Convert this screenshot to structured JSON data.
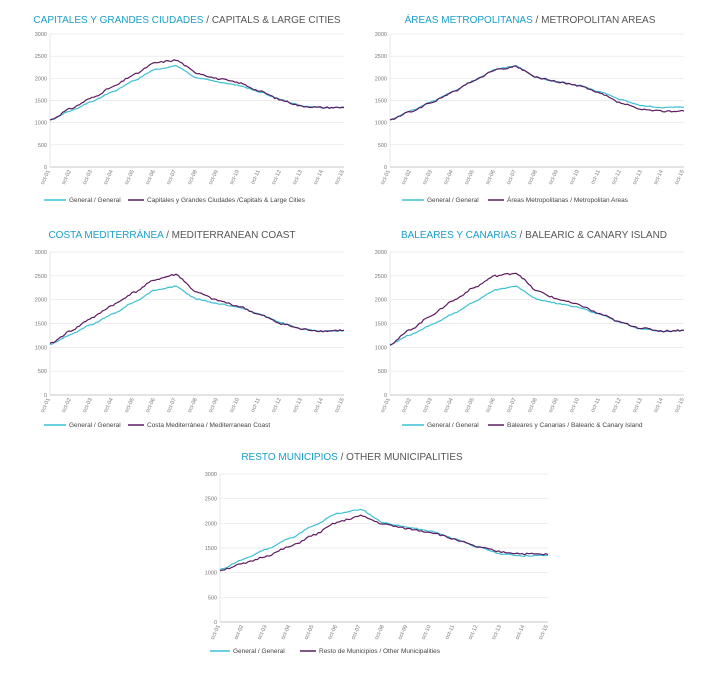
{
  "colors": {
    "general": "#3cc0d6",
    "region": "#5c1a60",
    "title_accent": "#1a9ec9",
    "axis": "#cccccc"
  },
  "x_categories": [
    "oct-01",
    "oct-02",
    "oct-03",
    "oct-04",
    "oct-05",
    "oct-06",
    "oct-07",
    "oct-08",
    "oct-09",
    "oct-10",
    "oct-11",
    "oct-12",
    "oct-13",
    "oct-14",
    "oct-15"
  ],
  "general_series": {
    "name_es": "General",
    "name_en": "General",
    "values": [
      1060,
      1270,
      1480,
      1700,
      1950,
      2200,
      2280,
      2010,
      1920,
      1840,
      1690,
      1520,
      1380,
      1340,
      1350
    ]
  },
  "chart_data": [
    {
      "type": "line",
      "title_es": "CAPITALES Y GRANDES CIUDADES",
      "title_en": "CAPITALS & LARGE CITIES",
      "ylim": [
        0,
        3000
      ],
      "yticks": [
        0,
        500,
        1000,
        1500,
        2000,
        2500,
        3000
      ],
      "legend_general": "General / General",
      "legend_region": "Capitales y Grandes Ciudades /Capitals & Large Cities",
      "region_values": [
        1060,
        1320,
        1560,
        1810,
        2080,
        2350,
        2410,
        2120,
        1990,
        1900,
        1710,
        1510,
        1370,
        1340,
        1340
      ]
    },
    {
      "type": "line",
      "title_es": "ÁREAS METROPOLITANAS",
      "title_en": "METROPOLITAN AREAS",
      "ylim": [
        0,
        3000
      ],
      "yticks": [
        0,
        500,
        1000,
        1500,
        2000,
        2500,
        3000
      ],
      "legend_general": "General / General",
      "legend_region": "Áreas Metropolitanas / Metropolitan Areas",
      "region_values": [
        1060,
        1250,
        1460,
        1690,
        1950,
        2190,
        2260,
        2020,
        1920,
        1830,
        1660,
        1440,
        1290,
        1260,
        1260
      ]
    },
    {
      "type": "line",
      "title_es": "COSTA MEDITERRÁNEA",
      "title_en": "MEDITERRANEAN COAST",
      "ylim": [
        0,
        3000
      ],
      "yticks": [
        0,
        500,
        1000,
        1500,
        2000,
        2500,
        3000
      ],
      "legend_general": "General / General",
      "legend_region": "Costa Mediterránea / Mediterranean Coast",
      "region_values": [
        1070,
        1350,
        1620,
        1890,
        2150,
        2420,
        2530,
        2150,
        1980,
        1860,
        1680,
        1500,
        1380,
        1340,
        1360
      ]
    },
    {
      "type": "line",
      "title_es": "BALEARES Y CANARIAS",
      "title_en": "BALEARIC & CANARY ISLAND",
      "ylim": [
        0,
        3000
      ],
      "yticks": [
        0,
        500,
        1000,
        1500,
        2000,
        2500,
        3000
      ],
      "legend_general": "General / General",
      "legend_region": "Baleares y Canarias / Balearic & Canary Island",
      "region_values": [
        1060,
        1380,
        1680,
        1980,
        2250,
        2500,
        2560,
        2180,
        2010,
        1890,
        1700,
        1520,
        1400,
        1340,
        1360
      ]
    },
    {
      "type": "line",
      "title_es": "RESTO MUNICIPIOS",
      "title_en": "OTHER MUNICIPALITIES",
      "ylim": [
        0,
        3000
      ],
      "yticks": [
        0,
        500,
        1000,
        1500,
        2000,
        2500,
        3000
      ],
      "legend_general": "General / General",
      "legend_region": "Resto de Municipios / Other Municipalities",
      "region_values": [
        1050,
        1180,
        1340,
        1530,
        1760,
        2020,
        2150,
        1980,
        1890,
        1820,
        1680,
        1520,
        1420,
        1380,
        1370
      ]
    }
  ]
}
